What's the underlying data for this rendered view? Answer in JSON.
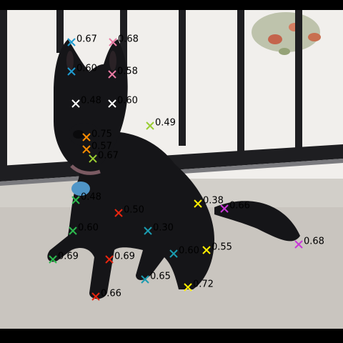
{
  "image": {
    "subject": "black dog sitting on a balcony",
    "colors": {
      "bar": "#000000",
      "fur": "#151518",
      "floor": "#c9c5bf",
      "wall": "#f1efec",
      "railing": "#1e1e21",
      "tag": "#4f95c7"
    }
  },
  "keypoints": [
    {
      "id": "kp1",
      "score": "0.67",
      "color": "#1f9bd0"
    },
    {
      "id": "kp2",
      "score": "0.68",
      "color": "#e97aa3"
    },
    {
      "id": "kp3",
      "score": "0.60",
      "color": "#1f9bd0"
    },
    {
      "id": "kp4",
      "score": "0.58",
      "color": "#e97aa3"
    },
    {
      "id": "kp5",
      "score": "0.48",
      "color": "#ffffff"
    },
    {
      "id": "kp6",
      "score": "0.60",
      "color": "#ffffff"
    },
    {
      "id": "kp7",
      "score": "0.49",
      "color": "#9acd32"
    },
    {
      "id": "kp8",
      "score": "0.75",
      "color": "#ff8c00"
    },
    {
      "id": "kp9",
      "score": "0.57",
      "color": "#ff8c00"
    },
    {
      "id": "kp10",
      "score": "0.67",
      "color": "#9acd32"
    },
    {
      "id": "kp11",
      "score": "0.48",
      "color": "#2db84d"
    },
    {
      "id": "kp12",
      "score": "0.50",
      "color": "#e8260f"
    },
    {
      "id": "kp13",
      "score": "0.60",
      "color": "#2db84d"
    },
    {
      "id": "kp14",
      "score": "0.69",
      "color": "#2db84d"
    },
    {
      "id": "kp15",
      "score": "0.69",
      "color": "#e8260f"
    },
    {
      "id": "kp16",
      "score": "0.66",
      "color": "#e8260f"
    },
    {
      "id": "kp17",
      "score": "0.30",
      "color": "#1a9bb0"
    },
    {
      "id": "kp18",
      "score": "0.60",
      "color": "#1a9bb0"
    },
    {
      "id": "kp19",
      "score": "0.65",
      "color": "#1a9bb0"
    },
    {
      "id": "kp20",
      "score": "0.38",
      "color": "#ffef00"
    },
    {
      "id": "kp21",
      "score": "0.55",
      "color": "#ffef00"
    },
    {
      "id": "kp22",
      "score": "0.72",
      "color": "#ffef00"
    },
    {
      "id": "kp23",
      "score": "0.66",
      "color": "#c838d8"
    },
    {
      "id": "kp24",
      "score": "0.68",
      "color": "#c838d8"
    }
  ]
}
